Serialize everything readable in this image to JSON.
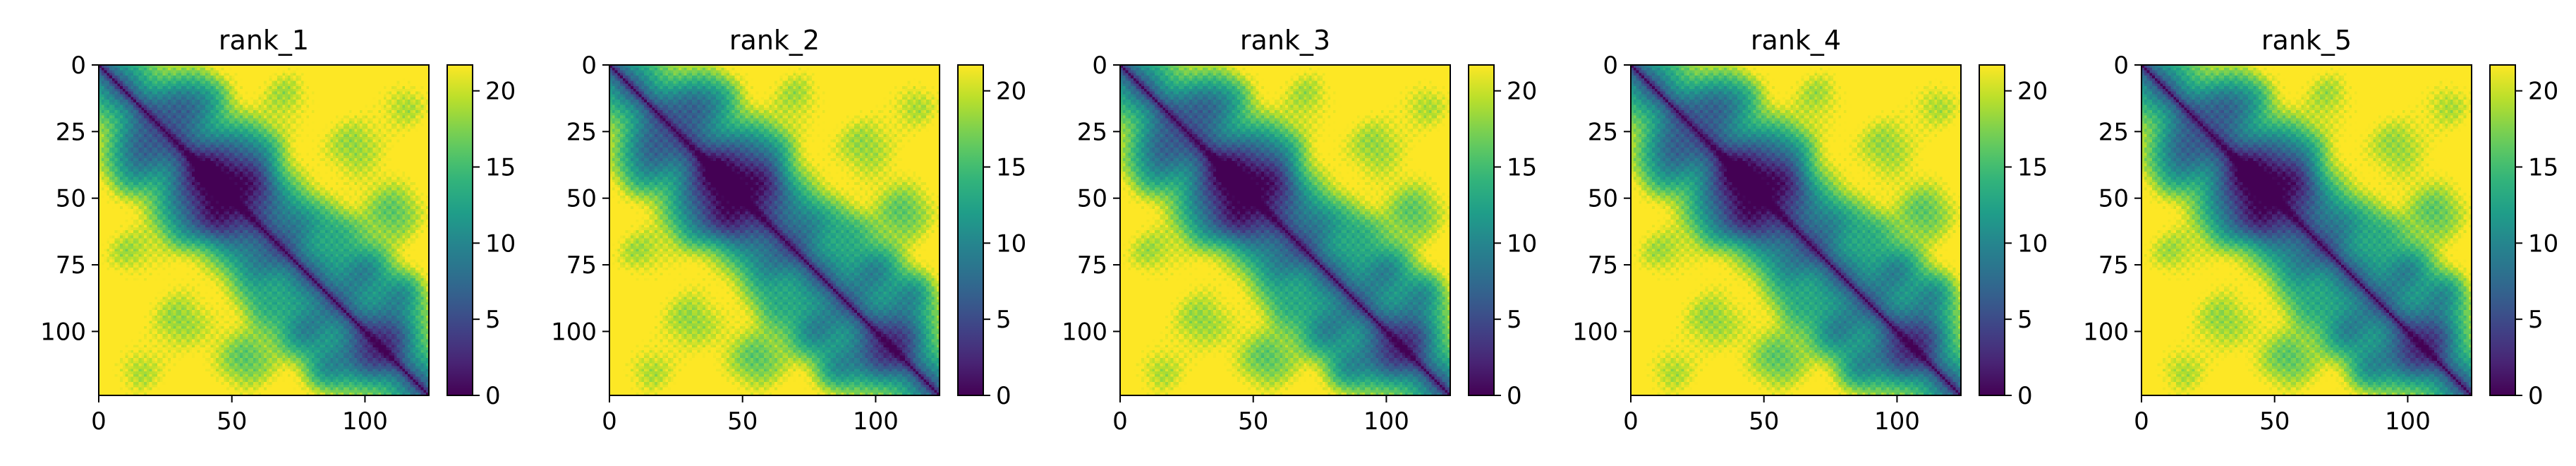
{
  "colormap": "viridis",
  "colors": {
    "low": "#440154",
    "mid": "#21918c",
    "high": "#fde725",
    "axis": "#000000"
  },
  "chart_data": [
    {
      "type": "heatmap",
      "title": "rank_1",
      "matrix_size": 124,
      "xlim": [
        0,
        124
      ],
      "ylim": [
        124,
        0
      ],
      "x_ticks": [
        0,
        50,
        100
      ],
      "x_tick_labels": [
        "0",
        "50",
        "100"
      ],
      "y_ticks": [
        0,
        25,
        50,
        75,
        100
      ],
      "y_tick_labels": [
        "0",
        "25",
        "50",
        "75",
        "100"
      ],
      "colorbar": {
        "min": 0,
        "max": 21.7,
        "ticks": [
          0,
          5,
          10,
          15,
          20
        ],
        "tick_labels": [
          "0",
          "5",
          "10",
          "15",
          "20"
        ]
      },
      "description_values": {
        "diagonal": 0,
        "saturated": 21.7
      }
    },
    {
      "type": "heatmap",
      "title": "rank_2",
      "matrix_size": 124,
      "xlim": [
        0,
        124
      ],
      "ylim": [
        124,
        0
      ],
      "x_ticks": [
        0,
        50,
        100
      ],
      "x_tick_labels": [
        "0",
        "50",
        "100"
      ],
      "y_ticks": [
        0,
        25,
        50,
        75,
        100
      ],
      "y_tick_labels": [
        "0",
        "25",
        "50",
        "75",
        "100"
      ],
      "colorbar": {
        "min": 0,
        "max": 21.7,
        "ticks": [
          0,
          5,
          10,
          15,
          20
        ],
        "tick_labels": [
          "0",
          "5",
          "10",
          "15",
          "20"
        ]
      },
      "description_values": {
        "diagonal": 0,
        "saturated": 21.7
      }
    },
    {
      "type": "heatmap",
      "title": "rank_3",
      "matrix_size": 124,
      "xlim": [
        0,
        124
      ],
      "ylim": [
        124,
        0
      ],
      "x_ticks": [
        0,
        50,
        100
      ],
      "x_tick_labels": [
        "0",
        "50",
        "100"
      ],
      "y_ticks": [
        0,
        25,
        50,
        75,
        100
      ],
      "y_tick_labels": [
        "0",
        "25",
        "50",
        "75",
        "100"
      ],
      "colorbar": {
        "min": 0,
        "max": 21.7,
        "ticks": [
          0,
          5,
          10,
          15,
          20
        ],
        "tick_labels": [
          "0",
          "5",
          "10",
          "15",
          "20"
        ]
      },
      "description_values": {
        "diagonal": 0,
        "saturated": 21.7
      }
    },
    {
      "type": "heatmap",
      "title": "rank_4",
      "matrix_size": 124,
      "xlim": [
        0,
        124
      ],
      "ylim": [
        124,
        0
      ],
      "x_ticks": [
        0,
        50,
        100
      ],
      "x_tick_labels": [
        "0",
        "50",
        "100"
      ],
      "y_ticks": [
        0,
        25,
        50,
        75,
        100
      ],
      "y_tick_labels": [
        "0",
        "25",
        "50",
        "75",
        "100"
      ],
      "colorbar": {
        "min": 0,
        "max": 21.7,
        "ticks": [
          0,
          5,
          10,
          15,
          20
        ],
        "tick_labels": [
          "0",
          "5",
          "10",
          "15",
          "20"
        ]
      },
      "description_values": {
        "diagonal": 0,
        "saturated": 21.7
      }
    },
    {
      "type": "heatmap",
      "title": "rank_5",
      "matrix_size": 124,
      "xlim": [
        0,
        124
      ],
      "ylim": [
        124,
        0
      ],
      "x_ticks": [
        0,
        50,
        100
      ],
      "x_tick_labels": [
        "0",
        "50",
        "100"
      ],
      "y_ticks": [
        0,
        25,
        50,
        75,
        100
      ],
      "y_tick_labels": [
        "0",
        "25",
        "50",
        "75",
        "100"
      ],
      "colorbar": {
        "min": 0,
        "max": 21.7,
        "ticks": [
          0,
          5,
          10,
          15,
          20
        ],
        "tick_labels": [
          "0",
          "5",
          "10",
          "15",
          "20"
        ]
      },
      "description_values": {
        "diagonal": 0,
        "saturated": 21.7
      }
    }
  ]
}
